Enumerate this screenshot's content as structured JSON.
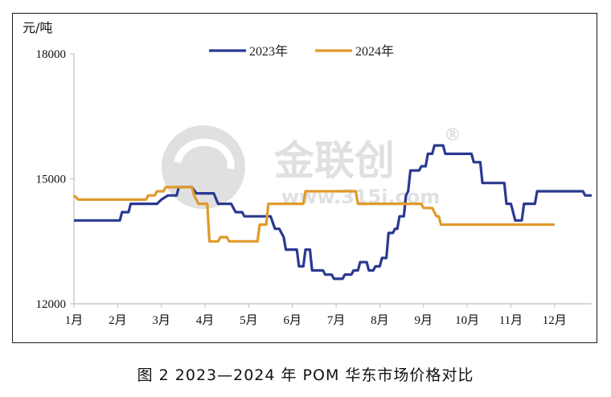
{
  "caption": "图 2  2023—2024 年 POM 华东市场价格对比",
  "watermark": {
    "brand": "金联创",
    "registered": "®",
    "url": "www.315i.com",
    "color": "#c8c8c8"
  },
  "chart_data": {
    "type": "line",
    "ylabel": "元/吨",
    "xlabel": "",
    "ylim": [
      12000,
      18000
    ],
    "yticks": [
      12000,
      15000,
      18000
    ],
    "x_range": [
      1,
      12.85
    ],
    "xtick_labels": [
      "1月",
      "2月",
      "3月",
      "4月",
      "5月",
      "6月",
      "7月",
      "8月",
      "9月",
      "10月",
      "11月",
      "12月"
    ],
    "legend_position": "top-center",
    "grid": false,
    "series": [
      {
        "name": "2023年",
        "color": "#2b3990",
        "points": [
          [
            1.0,
            14000
          ],
          [
            2.05,
            14000
          ],
          [
            2.1,
            14200
          ],
          [
            2.25,
            14200
          ],
          [
            2.3,
            14400
          ],
          [
            2.9,
            14400
          ],
          [
            3.0,
            14500
          ],
          [
            3.15,
            14600
          ],
          [
            3.35,
            14600
          ],
          [
            3.4,
            14800
          ],
          [
            3.7,
            14800
          ],
          [
            3.8,
            14650
          ],
          [
            4.2,
            14650
          ],
          [
            4.3,
            14400
          ],
          [
            4.6,
            14400
          ],
          [
            4.7,
            14200
          ],
          [
            4.85,
            14200
          ],
          [
            4.9,
            14100
          ],
          [
            5.5,
            14100
          ],
          [
            5.6,
            13800
          ],
          [
            5.7,
            13800
          ],
          [
            5.8,
            13600
          ],
          [
            5.85,
            13300
          ],
          [
            6.1,
            13300
          ],
          [
            6.15,
            12900
          ],
          [
            6.25,
            12900
          ],
          [
            6.3,
            13300
          ],
          [
            6.4,
            13300
          ],
          [
            6.45,
            12800
          ],
          [
            6.7,
            12800
          ],
          [
            6.75,
            12700
          ],
          [
            6.9,
            12700
          ],
          [
            6.95,
            12600
          ],
          [
            7.15,
            12600
          ],
          [
            7.2,
            12700
          ],
          [
            7.35,
            12700
          ],
          [
            7.4,
            12800
          ],
          [
            7.5,
            12800
          ],
          [
            7.55,
            13000
          ],
          [
            7.7,
            13000
          ],
          [
            7.75,
            12800
          ],
          [
            7.85,
            12800
          ],
          [
            7.9,
            12900
          ],
          [
            8.0,
            12900
          ],
          [
            8.05,
            13100
          ],
          [
            8.15,
            13100
          ],
          [
            8.2,
            13700
          ],
          [
            8.3,
            13700
          ],
          [
            8.35,
            13800
          ],
          [
            8.4,
            13800
          ],
          [
            8.45,
            14100
          ],
          [
            8.55,
            14100
          ],
          [
            8.6,
            14600
          ],
          [
            8.65,
            14700
          ],
          [
            8.7,
            15200
          ],
          [
            8.9,
            15200
          ],
          [
            8.95,
            15300
          ],
          [
            9.05,
            15300
          ],
          [
            9.1,
            15600
          ],
          [
            9.2,
            15600
          ],
          [
            9.25,
            15800
          ],
          [
            9.45,
            15800
          ],
          [
            9.5,
            15600
          ],
          [
            10.1,
            15600
          ],
          [
            10.15,
            15400
          ],
          [
            10.3,
            15400
          ],
          [
            10.35,
            14900
          ],
          [
            10.85,
            14900
          ],
          [
            10.9,
            14400
          ],
          [
            11.0,
            14400
          ],
          [
            11.1,
            14000
          ],
          [
            11.25,
            14000
          ],
          [
            11.3,
            14400
          ],
          [
            11.55,
            14400
          ],
          [
            11.6,
            14700
          ],
          [
            12.65,
            14700
          ],
          [
            12.7,
            14600
          ],
          [
            12.85,
            14600
          ]
        ]
      },
      {
        "name": "2024年",
        "color": "#e09a2b",
        "points": [
          [
            1.0,
            14600
          ],
          [
            1.1,
            14500
          ],
          [
            2.65,
            14500
          ],
          [
            2.7,
            14600
          ],
          [
            2.85,
            14600
          ],
          [
            2.9,
            14700
          ],
          [
            3.05,
            14700
          ],
          [
            3.1,
            14800
          ],
          [
            3.7,
            14800
          ],
          [
            3.75,
            14600
          ],
          [
            3.85,
            14400
          ],
          [
            4.05,
            14400
          ],
          [
            4.1,
            13500
          ],
          [
            4.3,
            13500
          ],
          [
            4.35,
            13600
          ],
          [
            4.5,
            13600
          ],
          [
            4.55,
            13500
          ],
          [
            5.2,
            13500
          ],
          [
            5.25,
            13900
          ],
          [
            5.4,
            13900
          ],
          [
            5.45,
            14400
          ],
          [
            6.25,
            14400
          ],
          [
            6.3,
            14700
          ],
          [
            7.45,
            14700
          ],
          [
            7.5,
            14400
          ],
          [
            8.95,
            14400
          ],
          [
            9.0,
            14300
          ],
          [
            9.2,
            14300
          ],
          [
            9.3,
            14100
          ],
          [
            9.35,
            14100
          ],
          [
            9.4,
            13900
          ],
          [
            12.0,
            13900
          ]
        ]
      }
    ]
  }
}
